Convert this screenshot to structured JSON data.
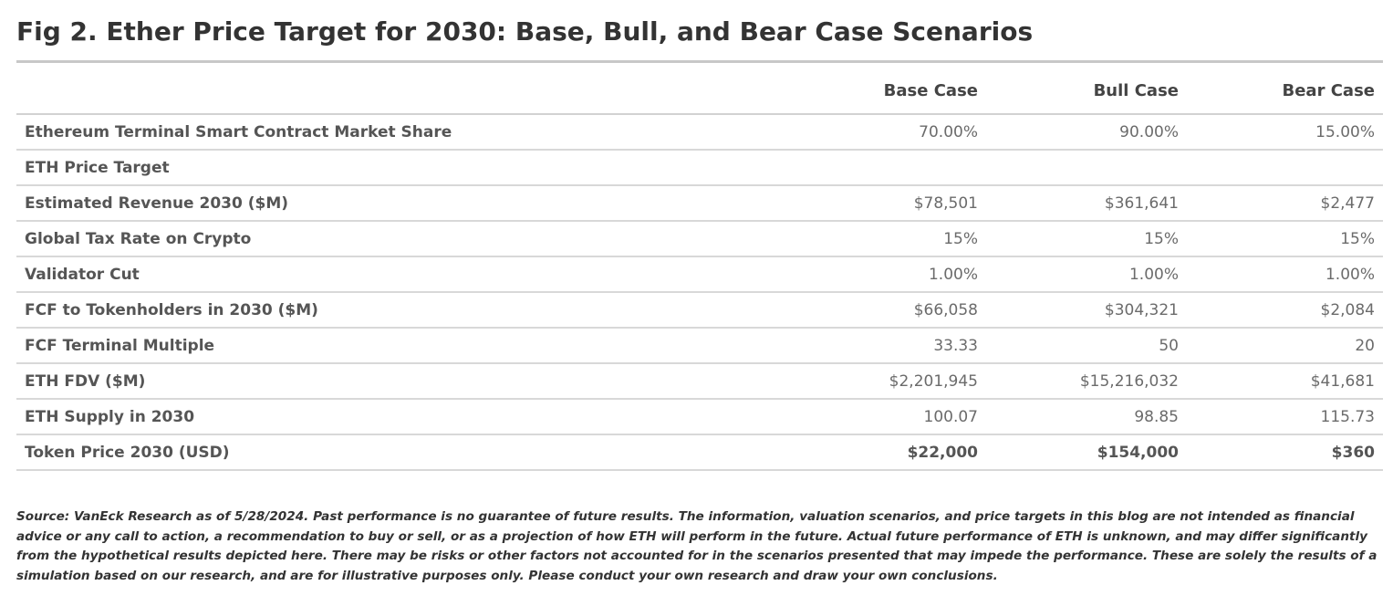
{
  "chart_data": {
    "type": "table",
    "title": "Fig 2. Ether Price Target for 2030: Base, Bull, and Bear Case Scenarios",
    "columns": [
      "",
      "Base Case",
      "Bull Case",
      "Bear Case"
    ],
    "rows": [
      {
        "label": "Ethereum Terminal Smart Contract Market Share",
        "values": [
          "70.00%",
          "90.00%",
          "15.00%"
        ]
      },
      {
        "label": "ETH Price Target",
        "values": [
          "",
          "",
          ""
        ]
      },
      {
        "label": "Estimated Revenue 2030 ($M)",
        "values": [
          "$78,501",
          "$361,641",
          "$2,477"
        ]
      },
      {
        "label": "Global Tax Rate on Crypto",
        "values": [
          "15%",
          "15%",
          "15%"
        ]
      },
      {
        "label": "Validator Cut",
        "values": [
          "1.00%",
          "1.00%",
          "1.00%"
        ]
      },
      {
        "label": "FCF to Tokenholders in 2030 ($M)",
        "values": [
          "$66,058",
          "$304,321",
          "$2,084"
        ]
      },
      {
        "label": "FCF Terminal Multiple",
        "values": [
          "33.33",
          "50",
          "20"
        ]
      },
      {
        "label": "ETH FDV ($M)",
        "values": [
          "$2,201,945",
          "$15,216,032",
          "$41,681"
        ]
      },
      {
        "label": "ETH Supply in 2030",
        "values": [
          "100.07",
          "98.85",
          "115.73"
        ]
      },
      {
        "label": "Token Price 2030 (USD)",
        "values": [
          "$22,000",
          "$154,000",
          "$360"
        ],
        "emphasis": true
      }
    ],
    "source": "Source: VanEck Research as of 5/28/2024. Past performance is no guarantee of future results. The information, valuation scenarios, and price targets in this blog are not intended as financial advice or any call to action, a recommendation to buy or sell, or as a projection of how ETH will perform in the future. Actual future performance of ETH is unknown, and may differ significantly from the hypothetical results depicted here. There may be risks or other factors not accounted for in the scenarios presented that may impede the performance. These are solely the results of a simulation based on our research, and are for illustrative purposes only. Please conduct your own research and draw your own conclusions."
  }
}
